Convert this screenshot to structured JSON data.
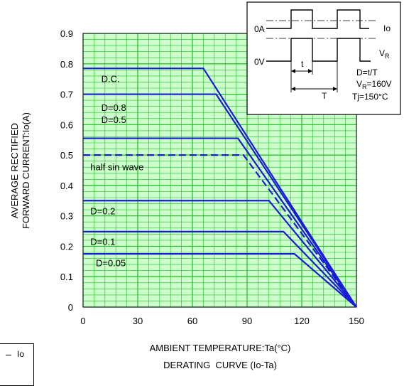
{
  "chart_data": {
    "type": "line",
    "xlabel": "AMBIENT TEMPERATURE:Ta(°C)",
    "caption": "DERATING  CURVE (Io-Ta)",
    "ylabel_lines": [
      "AVERAGE RECTIFIED",
      "FORWARD CURRENT:Io(A)"
    ],
    "xlim": [
      0,
      150
    ],
    "ylim": [
      0,
      0.9
    ],
    "x_ticks": [
      0,
      30,
      60,
      90,
      120,
      150
    ],
    "y_ticks": [
      0,
      0.1,
      0.2,
      0.3,
      0.4,
      0.5,
      0.6,
      0.7,
      0.8,
      0.9
    ],
    "grid": true,
    "series": [
      {
        "name": "D.C.",
        "dashed": false,
        "points": [
          [
            0,
            0.785
          ],
          [
            66,
            0.785
          ],
          [
            150,
            0
          ]
        ]
      },
      {
        "name": "D=0.8",
        "dashed": false,
        "points": [
          [
            0,
            0.7
          ],
          [
            73,
            0.7
          ],
          [
            150,
            0
          ]
        ]
      },
      {
        "name": "D=0.5",
        "dashed": false,
        "points": [
          [
            0,
            0.555
          ],
          [
            85,
            0.555
          ],
          [
            150,
            0
          ]
        ]
      },
      {
        "name": "half sin wave",
        "dashed": true,
        "points": [
          [
            0,
            0.5
          ],
          [
            88,
            0.5
          ],
          [
            150,
            0
          ]
        ]
      },
      {
        "name": "D=0.2",
        "dashed": false,
        "points": [
          [
            0,
            0.35
          ],
          [
            102,
            0.35
          ],
          [
            150,
            0
          ]
        ]
      },
      {
        "name": "D=0.1",
        "dashed": false,
        "points": [
          [
            0,
            0.248
          ],
          [
            110,
            0.248
          ],
          [
            150,
            0
          ]
        ]
      },
      {
        "name": "D=0.05",
        "dashed": false,
        "points": [
          [
            0,
            0.175
          ],
          [
            116,
            0.175
          ],
          [
            150,
            0
          ]
        ]
      }
    ],
    "colors": {
      "curve": "#1a1adb",
      "grid": "#22bb22",
      "background": "#ccffcc"
    }
  },
  "inset": {
    "io_label": "Io",
    "zero_current_label": "0A",
    "zero_voltage_label": "0V",
    "vr_label_main": "V",
    "vr_label_sub": "R",
    "t_label": "t",
    "T_label": "T",
    "duty_formula": "D=t/T",
    "vr_value_main": "V",
    "vr_value_sub": "R",
    "vr_value_rest": "=160V",
    "tj_value": "Tj=150°C"
  },
  "stray_fragment": {
    "label": "Io"
  }
}
